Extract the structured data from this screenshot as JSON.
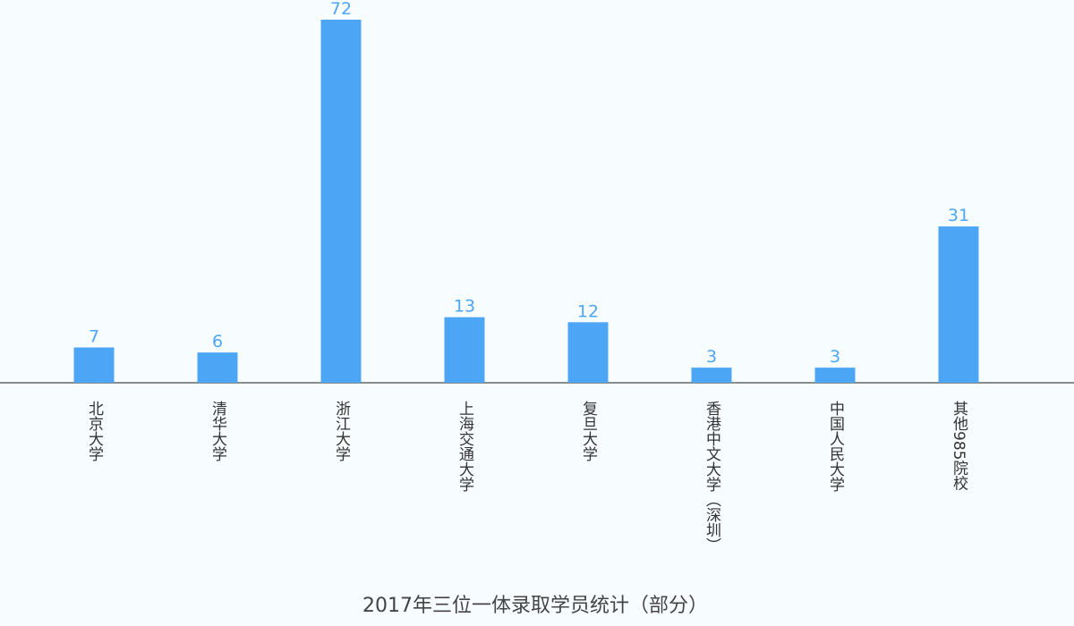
{
  "chart_data": {
    "type": "bar",
    "title": "2017年三位一体录取学员统计（部分）",
    "categories": [
      "北京大学",
      "清华大学",
      "浙江大学",
      "上海交通大学",
      "复旦大学",
      "香港中文大学（深圳）",
      "中国人民大学",
      "其他985院校"
    ],
    "values": [
      7,
      6,
      72,
      13,
      12,
      3,
      3,
      31
    ],
    "color": "#4da6f5"
  }
}
